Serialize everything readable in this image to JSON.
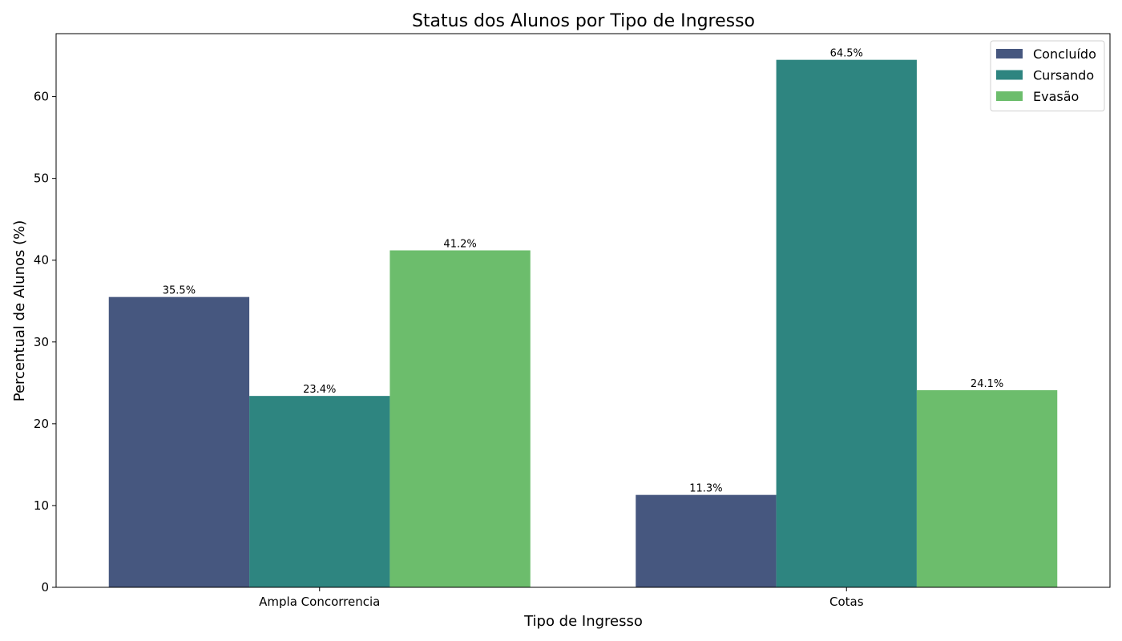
{
  "chart_data": {
    "type": "bar",
    "title": "Status dos Alunos por Tipo de Ingresso",
    "xlabel": "Tipo de Ingresso",
    "ylabel": "Percentual de Alunos (%)",
    "categories": [
      "Ampla Concorrencia",
      "Cotas"
    ],
    "series": [
      {
        "name": "Concluído",
        "values": [
          35.5,
          11.3
        ],
        "labels": [
          "35.5%",
          "11.3%"
        ],
        "color": "#46577f"
      },
      {
        "name": "Cursando",
        "values": [
          23.4,
          64.5
        ],
        "labels": [
          "23.4%",
          "64.5%"
        ],
        "color": "#2e8580"
      },
      {
        "name": "Evasão",
        "values": [
          41.2,
          24.1
        ],
        "labels": [
          "41.2%",
          "24.1%"
        ],
        "color": "#6cbd6c"
      }
    ],
    "ylim": [
      0,
      67.7
    ],
    "yticks": [
      "0",
      "10",
      "20",
      "30",
      "40",
      "50",
      "60"
    ],
    "grid": false,
    "legend_position": "top-right"
  }
}
